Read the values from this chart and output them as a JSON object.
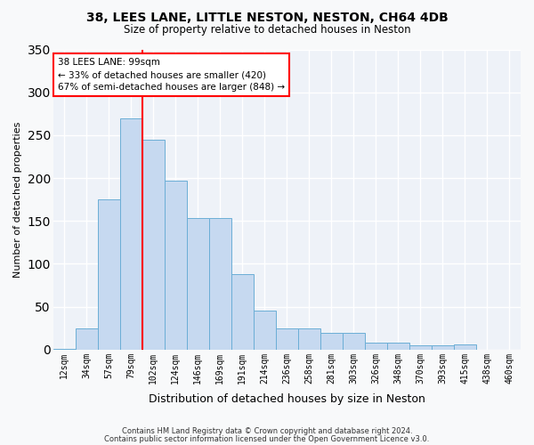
{
  "title_line1": "38, LEES LANE, LITTLE NESTON, NESTON, CH64 4DB",
  "title_line2": "Size of property relative to detached houses in Neston",
  "xlabel": "Distribution of detached houses by size in Neston",
  "ylabel": "Number of detached properties",
  "categories": [
    "12sqm",
    "34sqm",
    "57sqm",
    "79sqm",
    "102sqm",
    "124sqm",
    "146sqm",
    "169sqm",
    "191sqm",
    "214sqm",
    "236sqm",
    "258sqm",
    "281sqm",
    "303sqm",
    "326sqm",
    "348sqm",
    "370sqm",
    "393sqm",
    "415sqm",
    "438sqm",
    "460sqm"
  ],
  "values": [
    1,
    25,
    175,
    270,
    245,
    197,
    153,
    153,
    88,
    46,
    25,
    25,
    20,
    20,
    8,
    8,
    5,
    5,
    6,
    0,
    0
  ],
  "bar_color": "#c6d9f0",
  "bar_edge_color": "#6baed6",
  "annotation_text_line1": "38 LEES LANE: 99sqm",
  "annotation_text_line2": "← 33% of detached houses are smaller (420)",
  "annotation_text_line3": "67% of semi-detached houses are larger (848) →",
  "annotation_box_color": "red",
  "vline_bin_index": 4,
  "footer_line1": "Contains HM Land Registry data © Crown copyright and database right 2024.",
  "footer_line2": "Contains public sector information licensed under the Open Government Licence v3.0.",
  "bg_color": "#f8f9fa",
  "plot_bg_color": "#eef2f8",
  "grid_color": "white",
  "ylim": [
    0,
    350
  ],
  "yticks": [
    0,
    50,
    100,
    150,
    200,
    250,
    300,
    350
  ]
}
